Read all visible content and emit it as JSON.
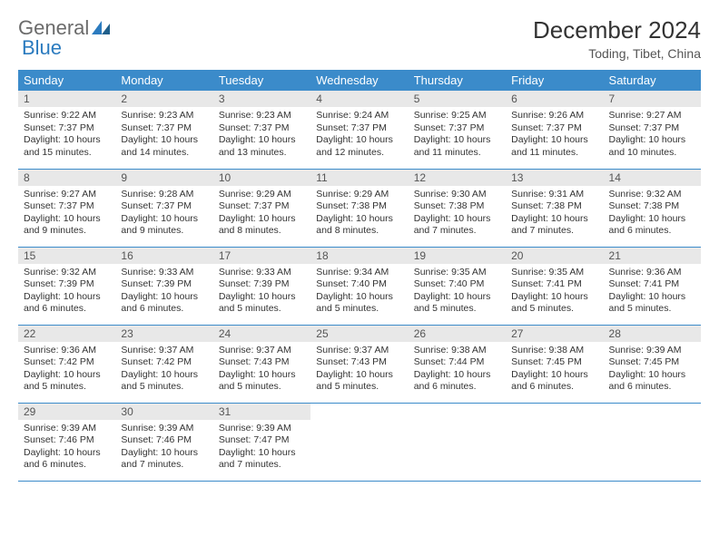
{
  "brand": {
    "part1": "General",
    "part2": "Blue"
  },
  "title": "December 2024",
  "location": "Toding, Tibet, China",
  "colors": {
    "header_bg": "#3b8bca",
    "header_text": "#ffffff",
    "daynum_bg": "#e8e8e8",
    "border": "#3b8bca",
    "text": "#333333",
    "brand_gray": "#6b6b6b",
    "brand_blue": "#2b7bbf",
    "background": "#ffffff"
  },
  "typography": {
    "title_fontsize": 26,
    "location_fontsize": 14,
    "dayheader_fontsize": 13,
    "daynum_fontsize": 12,
    "details_fontsize": 10.5,
    "font_family": "Arial"
  },
  "day_headers": [
    "Sunday",
    "Monday",
    "Tuesday",
    "Wednesday",
    "Thursday",
    "Friday",
    "Saturday"
  ],
  "weeks": [
    [
      {
        "n": "1",
        "sr": "Sunrise: 9:22 AM",
        "ss": "Sunset: 7:37 PM",
        "dl": "Daylight: 10 hours and 15 minutes."
      },
      {
        "n": "2",
        "sr": "Sunrise: 9:23 AM",
        "ss": "Sunset: 7:37 PM",
        "dl": "Daylight: 10 hours and 14 minutes."
      },
      {
        "n": "3",
        "sr": "Sunrise: 9:23 AM",
        "ss": "Sunset: 7:37 PM",
        "dl": "Daylight: 10 hours and 13 minutes."
      },
      {
        "n": "4",
        "sr": "Sunrise: 9:24 AM",
        "ss": "Sunset: 7:37 PM",
        "dl": "Daylight: 10 hours and 12 minutes."
      },
      {
        "n": "5",
        "sr": "Sunrise: 9:25 AM",
        "ss": "Sunset: 7:37 PM",
        "dl": "Daylight: 10 hours and 11 minutes."
      },
      {
        "n": "6",
        "sr": "Sunrise: 9:26 AM",
        "ss": "Sunset: 7:37 PM",
        "dl": "Daylight: 10 hours and 11 minutes."
      },
      {
        "n": "7",
        "sr": "Sunrise: 9:27 AM",
        "ss": "Sunset: 7:37 PM",
        "dl": "Daylight: 10 hours and 10 minutes."
      }
    ],
    [
      {
        "n": "8",
        "sr": "Sunrise: 9:27 AM",
        "ss": "Sunset: 7:37 PM",
        "dl": "Daylight: 10 hours and 9 minutes."
      },
      {
        "n": "9",
        "sr": "Sunrise: 9:28 AM",
        "ss": "Sunset: 7:37 PM",
        "dl": "Daylight: 10 hours and 9 minutes."
      },
      {
        "n": "10",
        "sr": "Sunrise: 9:29 AM",
        "ss": "Sunset: 7:37 PM",
        "dl": "Daylight: 10 hours and 8 minutes."
      },
      {
        "n": "11",
        "sr": "Sunrise: 9:29 AM",
        "ss": "Sunset: 7:38 PM",
        "dl": "Daylight: 10 hours and 8 minutes."
      },
      {
        "n": "12",
        "sr": "Sunrise: 9:30 AM",
        "ss": "Sunset: 7:38 PM",
        "dl": "Daylight: 10 hours and 7 minutes."
      },
      {
        "n": "13",
        "sr": "Sunrise: 9:31 AM",
        "ss": "Sunset: 7:38 PM",
        "dl": "Daylight: 10 hours and 7 minutes."
      },
      {
        "n": "14",
        "sr": "Sunrise: 9:32 AM",
        "ss": "Sunset: 7:38 PM",
        "dl": "Daylight: 10 hours and 6 minutes."
      }
    ],
    [
      {
        "n": "15",
        "sr": "Sunrise: 9:32 AM",
        "ss": "Sunset: 7:39 PM",
        "dl": "Daylight: 10 hours and 6 minutes."
      },
      {
        "n": "16",
        "sr": "Sunrise: 9:33 AM",
        "ss": "Sunset: 7:39 PM",
        "dl": "Daylight: 10 hours and 6 minutes."
      },
      {
        "n": "17",
        "sr": "Sunrise: 9:33 AM",
        "ss": "Sunset: 7:39 PM",
        "dl": "Daylight: 10 hours and 5 minutes."
      },
      {
        "n": "18",
        "sr": "Sunrise: 9:34 AM",
        "ss": "Sunset: 7:40 PM",
        "dl": "Daylight: 10 hours and 5 minutes."
      },
      {
        "n": "19",
        "sr": "Sunrise: 9:35 AM",
        "ss": "Sunset: 7:40 PM",
        "dl": "Daylight: 10 hours and 5 minutes."
      },
      {
        "n": "20",
        "sr": "Sunrise: 9:35 AM",
        "ss": "Sunset: 7:41 PM",
        "dl": "Daylight: 10 hours and 5 minutes."
      },
      {
        "n": "21",
        "sr": "Sunrise: 9:36 AM",
        "ss": "Sunset: 7:41 PM",
        "dl": "Daylight: 10 hours and 5 minutes."
      }
    ],
    [
      {
        "n": "22",
        "sr": "Sunrise: 9:36 AM",
        "ss": "Sunset: 7:42 PM",
        "dl": "Daylight: 10 hours and 5 minutes."
      },
      {
        "n": "23",
        "sr": "Sunrise: 9:37 AM",
        "ss": "Sunset: 7:42 PM",
        "dl": "Daylight: 10 hours and 5 minutes."
      },
      {
        "n": "24",
        "sr": "Sunrise: 9:37 AM",
        "ss": "Sunset: 7:43 PM",
        "dl": "Daylight: 10 hours and 5 minutes."
      },
      {
        "n": "25",
        "sr": "Sunrise: 9:37 AM",
        "ss": "Sunset: 7:43 PM",
        "dl": "Daylight: 10 hours and 5 minutes."
      },
      {
        "n": "26",
        "sr": "Sunrise: 9:38 AM",
        "ss": "Sunset: 7:44 PM",
        "dl": "Daylight: 10 hours and 6 minutes."
      },
      {
        "n": "27",
        "sr": "Sunrise: 9:38 AM",
        "ss": "Sunset: 7:45 PM",
        "dl": "Daylight: 10 hours and 6 minutes."
      },
      {
        "n": "28",
        "sr": "Sunrise: 9:39 AM",
        "ss": "Sunset: 7:45 PM",
        "dl": "Daylight: 10 hours and 6 minutes."
      }
    ],
    [
      {
        "n": "29",
        "sr": "Sunrise: 9:39 AM",
        "ss": "Sunset: 7:46 PM",
        "dl": "Daylight: 10 hours and 6 minutes."
      },
      {
        "n": "30",
        "sr": "Sunrise: 9:39 AM",
        "ss": "Sunset: 7:46 PM",
        "dl": "Daylight: 10 hours and 7 minutes."
      },
      {
        "n": "31",
        "sr": "Sunrise: 9:39 AM",
        "ss": "Sunset: 7:47 PM",
        "dl": "Daylight: 10 hours and 7 minutes."
      },
      null,
      null,
      null,
      null
    ]
  ]
}
